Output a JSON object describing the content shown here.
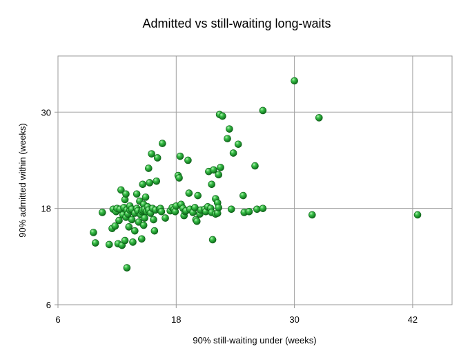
{
  "chart_data": {
    "type": "scatter",
    "title": "Admitted vs still-waiting long-waits",
    "xlabel": "90% still-waiting under (weeks)",
    "ylabel": "90% admitted within (weeks)",
    "xlim": [
      6,
      46
    ],
    "ylim": [
      6,
      37
    ],
    "xticks": [
      6,
      18,
      30,
      42
    ],
    "yticks": [
      6,
      18,
      30
    ],
    "xtick_labels": [
      "6",
      "18",
      "30",
      "42"
    ],
    "ytick_labels": [
      "6",
      "18",
      "30"
    ],
    "grid": true,
    "legend": "none",
    "marker_color": "#22aa33",
    "points": [
      [
        9.6,
        15.0
      ],
      [
        9.8,
        13.7
      ],
      [
        10.5,
        17.5
      ],
      [
        11.2,
        13.5
      ],
      [
        11.5,
        15.5
      ],
      [
        11.6,
        17.9
      ],
      [
        11.8,
        15.8
      ],
      [
        11.9,
        17.6
      ],
      [
        12.0,
        18.0
      ],
      [
        12.1,
        13.6
      ],
      [
        12.2,
        16.5
      ],
      [
        12.3,
        17.9
      ],
      [
        12.4,
        20.3
      ],
      [
        12.5,
        13.4
      ],
      [
        12.6,
        17.2
      ],
      [
        12.7,
        18.1
      ],
      [
        12.8,
        14.0
      ],
      [
        12.8,
        19.1
      ],
      [
        12.9,
        19.8
      ],
      [
        12.9,
        16.9
      ],
      [
        13.0,
        17.8
      ],
      [
        13.0,
        10.6
      ],
      [
        13.1,
        17.3
      ],
      [
        13.2,
        15.7
      ],
      [
        13.3,
        17.8
      ],
      [
        13.3,
        18.3
      ],
      [
        13.5,
        16.6
      ],
      [
        13.5,
        17.9
      ],
      [
        13.6,
        13.8
      ],
      [
        13.8,
        17.4
      ],
      [
        13.8,
        15.2
      ],
      [
        14.0,
        19.8
      ],
      [
        14.0,
        18.0
      ],
      [
        14.1,
        17.7
      ],
      [
        14.2,
        16.3
      ],
      [
        14.3,
        18.9
      ],
      [
        14.4,
        17.2
      ],
      [
        14.5,
        17.6
      ],
      [
        14.5,
        14.2
      ],
      [
        14.6,
        21.0
      ],
      [
        14.6,
        17.8
      ],
      [
        14.7,
        15.9
      ],
      [
        14.7,
        18.5
      ],
      [
        14.8,
        17.9
      ],
      [
        14.8,
        16.8
      ],
      [
        14.9,
        19.4
      ],
      [
        15.0,
        17.6
      ],
      [
        15.1,
        18.2
      ],
      [
        15.2,
        17.8
      ],
      [
        15.2,
        23.0
      ],
      [
        15.3,
        21.2
      ],
      [
        15.4,
        17.4
      ],
      [
        15.5,
        24.8
      ],
      [
        15.6,
        18.0
      ],
      [
        15.7,
        16.6
      ],
      [
        15.8,
        15.2
      ],
      [
        15.9,
        17.8
      ],
      [
        16.0,
        21.4
      ],
      [
        16.1,
        24.3
      ],
      [
        16.3,
        17.9
      ],
      [
        16.4,
        18.0
      ],
      [
        16.5,
        17.6
      ],
      [
        16.6,
        26.1
      ],
      [
        16.9,
        16.8
      ],
      [
        17.4,
        17.7
      ],
      [
        17.6,
        18.1
      ],
      [
        17.8,
        17.9
      ],
      [
        17.9,
        17.6
      ],
      [
        18.0,
        18.3
      ],
      [
        18.2,
        22.1
      ],
      [
        18.3,
        21.8
      ],
      [
        18.4,
        24.5
      ],
      [
        18.5,
        18.5
      ],
      [
        18.7,
        18.0
      ],
      [
        18.8,
        17.1
      ],
      [
        18.9,
        17.6
      ],
      [
        19.0,
        17.7
      ],
      [
        19.2,
        24.0
      ],
      [
        19.3,
        19.9
      ],
      [
        19.4,
        17.9
      ],
      [
        19.7,
        17.5
      ],
      [
        19.9,
        18.1
      ],
      [
        20.0,
        16.6
      ],
      [
        20.1,
        16.4
      ],
      [
        20.2,
        19.6
      ],
      [
        20.4,
        17.3
      ],
      [
        20.5,
        17.8
      ],
      [
        20.9,
        17.9
      ],
      [
        21.0,
        17.6
      ],
      [
        21.2,
        18.2
      ],
      [
        21.3,
        22.6
      ],
      [
        21.5,
        18.0
      ],
      [
        21.6,
        21.0
      ],
      [
        21.6,
        17.5
      ],
      [
        21.7,
        14.1
      ],
      [
        21.8,
        22.8
      ],
      [
        22.0,
        17.3
      ],
      [
        22.0,
        19.2
      ],
      [
        22.2,
        18.7
      ],
      [
        22.2,
        17.4
      ],
      [
        22.3,
        18.1
      ],
      [
        22.3,
        22.2
      ],
      [
        22.4,
        29.7
      ],
      [
        22.5,
        23.1
      ],
      [
        22.7,
        29.5
      ],
      [
        23.2,
        26.7
      ],
      [
        23.4,
        27.9
      ],
      [
        23.6,
        17.9
      ],
      [
        23.8,
        24.9
      ],
      [
        24.3,
        26.0
      ],
      [
        24.8,
        19.6
      ],
      [
        24.9,
        17.5
      ],
      [
        25.4,
        17.6
      ],
      [
        26.0,
        23.3
      ],
      [
        26.2,
        17.9
      ],
      [
        26.8,
        18.0
      ],
      [
        26.8,
        30.2
      ],
      [
        30.0,
        33.9
      ],
      [
        31.8,
        17.2
      ],
      [
        32.5,
        29.3
      ],
      [
        42.5,
        17.2
      ]
    ]
  }
}
